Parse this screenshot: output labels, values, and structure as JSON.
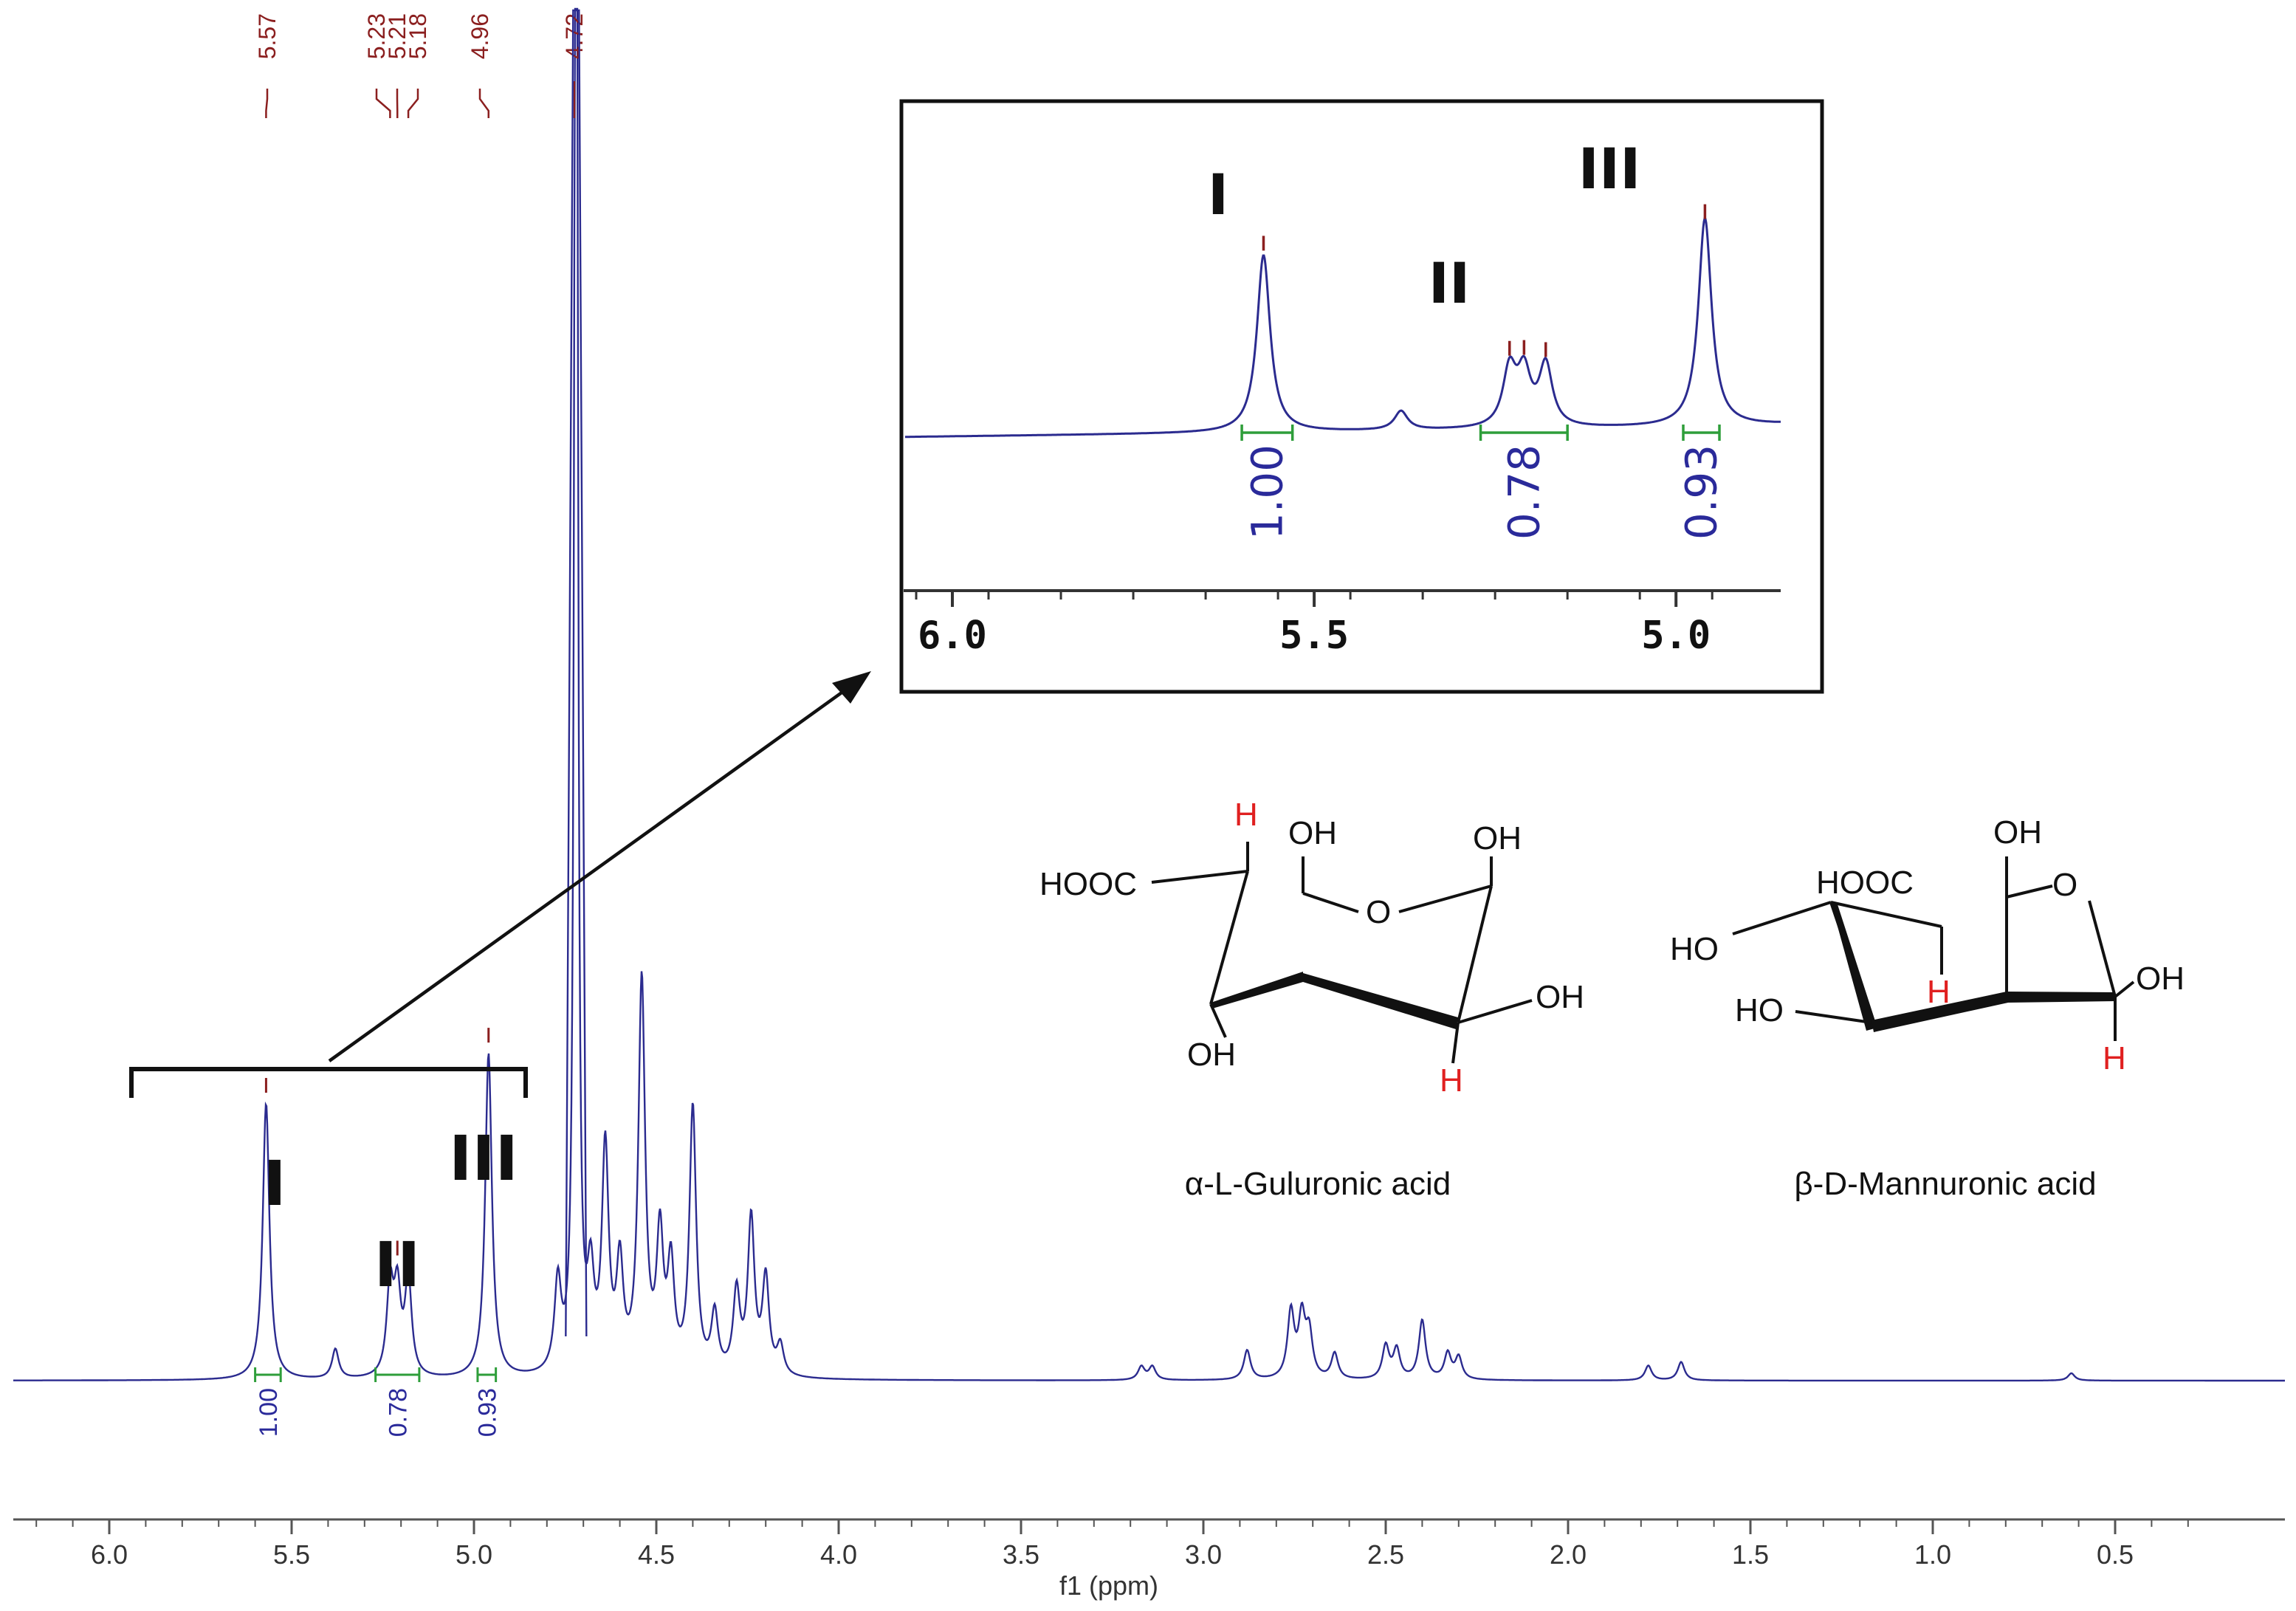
{
  "chart_data": {
    "type": "line",
    "xlabel": "f1 (ppm)",
    "x_reversed": true,
    "xlim": [
      6.25,
      0.2
    ],
    "xticks": [
      6.0,
      5.5,
      5.0,
      4.5,
      4.0,
      3.5,
      3.0,
      2.5,
      2.0,
      1.5,
      1.0,
      0.5
    ],
    "xtick_labels": [
      "6.0",
      "5.5",
      "5.0",
      "4.5",
      "4.0",
      "3.5",
      "3.0",
      "2.5",
      "2.0",
      "1.5",
      "1.0",
      "0.5"
    ],
    "peak_labels": [
      "5.57",
      "5.23",
      "5.21",
      "5.18",
      "4.96",
      "4.72"
    ],
    "peaks": [
      {
        "ppm": 5.57,
        "height": 0.375
      },
      {
        "ppm": 5.38,
        "height": 0.04
      },
      {
        "ppm": 5.23,
        "height": 0.12
      },
      {
        "ppm": 5.21,
        "height": 0.11
      },
      {
        "ppm": 5.18,
        "height": 0.13
      },
      {
        "ppm": 4.96,
        "height": 0.44
      },
      {
        "ppm": 4.72,
        "height": 3.2
      },
      {
        "ppm": 4.77,
        "height": 0.12
      },
      {
        "ppm": 4.68,
        "height": 0.12
      },
      {
        "ppm": 4.64,
        "height": 0.3
      },
      {
        "ppm": 4.6,
        "height": 0.14
      },
      {
        "ppm": 4.54,
        "height": 0.53
      },
      {
        "ppm": 4.49,
        "height": 0.18
      },
      {
        "ppm": 4.46,
        "height": 0.14
      },
      {
        "ppm": 4.4,
        "height": 0.36
      },
      {
        "ppm": 4.34,
        "height": 0.08
      },
      {
        "ppm": 4.28,
        "height": 0.11
      },
      {
        "ppm": 4.24,
        "height": 0.21
      },
      {
        "ppm": 4.2,
        "height": 0.13
      },
      {
        "ppm": 4.16,
        "height": 0.04
      },
      {
        "ppm": 3.17,
        "height": 0.018
      },
      {
        "ppm": 3.14,
        "height": 0.018
      },
      {
        "ppm": 2.88,
        "height": 0.04
      },
      {
        "ppm": 2.76,
        "height": 0.09
      },
      {
        "ppm": 2.73,
        "height": 0.08
      },
      {
        "ppm": 2.71,
        "height": 0.06
      },
      {
        "ppm": 2.64,
        "height": 0.035
      },
      {
        "ppm": 2.5,
        "height": 0.045
      },
      {
        "ppm": 2.47,
        "height": 0.04
      },
      {
        "ppm": 2.4,
        "height": 0.08
      },
      {
        "ppm": 2.33,
        "height": 0.035
      },
      {
        "ppm": 2.3,
        "height": 0.03
      },
      {
        "ppm": 1.78,
        "height": 0.02
      },
      {
        "ppm": 1.69,
        "height": 0.025
      },
      {
        "ppm": 0.62,
        "height": 0.01
      }
    ],
    "integrals": [
      {
        "label": "1.00",
        "from": 5.6,
        "to": 5.53
      },
      {
        "label": "0.78",
        "from": 5.27,
        "to": 5.15
      },
      {
        "label": "0.93",
        "from": 4.99,
        "to": 4.94
      }
    ],
    "region_labels": [
      {
        "text": "I",
        "ppm": 5.57
      },
      {
        "text": "II",
        "ppm": 5.2
      },
      {
        "text": "III",
        "ppm": 4.96
      }
    ],
    "inset": {
      "xlim": [
        6.05,
        4.85
      ],
      "xticks": [
        6.0,
        5.5,
        5.0
      ],
      "xtick_labels": [
        "6.0",
        "5.5",
        "5.0"
      ],
      "region_labels": [
        "I",
        "II",
        "III"
      ],
      "integral_labels": [
        "1.00",
        "0.78",
        "0.93"
      ]
    }
  },
  "structures": {
    "guluronic": {
      "name": "α-L-Guluronic acid",
      "labels": [
        "HOOC",
        "H",
        "OH",
        "OH",
        "O",
        "OH",
        "OH",
        "H"
      ]
    },
    "mannuronic": {
      "name": "β-D-Mannuronic acid",
      "labels": [
        "OH",
        "HOOC",
        "O",
        "HO",
        "H",
        "OH",
        "HO",
        "H"
      ]
    }
  },
  "colors": {
    "spectrum": "#2b2b8f",
    "peak_label": "#8b1f1f",
    "integral_line": "#2e9e3a",
    "integral_text": "#2a2a9a",
    "highlight_h": "#e02020"
  }
}
